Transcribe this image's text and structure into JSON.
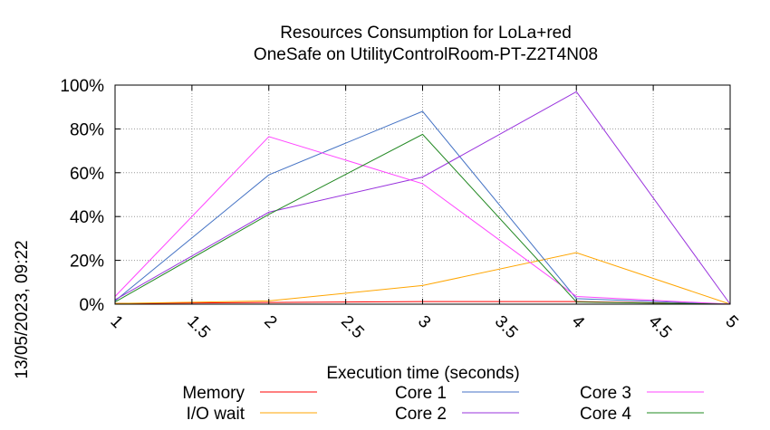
{
  "chart_data": {
    "type": "line",
    "title": "Resources Consumption for LoLa+red",
    "subtitle": "OneSafe on UtilityControlRoom-PT-Z2T4N08",
    "xlabel": "Execution time (seconds)",
    "ylabel": "",
    "side_label": "13/05/2023, 09:22",
    "xlim": [
      1,
      5
    ],
    "ylim": [
      0,
      100
    ],
    "x_ticks": [
      "1",
      "1.5",
      "2",
      "2.5",
      "3",
      "3.5",
      "4",
      "4.5",
      "5"
    ],
    "y_ticks": [
      "0%",
      "20%",
      "40%",
      "60%",
      "80%",
      "100%"
    ],
    "grid": true,
    "legend_position": "bottom",
    "series": [
      {
        "name": "Memory",
        "color": "#ff0000",
        "x": [
          1,
          2,
          3,
          4,
          5
        ],
        "y": [
          0.3,
          0.8,
          1.2,
          1.2,
          0
        ]
      },
      {
        "name": "I/O wait",
        "color": "#ffa500",
        "x": [
          1,
          2,
          3,
          4,
          5
        ],
        "y": [
          0.3,
          1.5,
          8.5,
          23.5,
          0
        ]
      },
      {
        "name": "Core 1",
        "color": "#4472c4",
        "x": [
          1,
          2,
          3,
          4,
          5
        ],
        "y": [
          1.5,
          59,
          88,
          2.5,
          0
        ]
      },
      {
        "name": "Core 2",
        "color": "#9933dd",
        "x": [
          1,
          2,
          3,
          4,
          5
        ],
        "y": [
          2,
          42,
          58,
          97,
          0
        ]
      },
      {
        "name": "Core 3",
        "color": "#ff44ff",
        "x": [
          1,
          2,
          3,
          4,
          5
        ],
        "y": [
          3.5,
          76.5,
          55,
          3.5,
          0
        ]
      },
      {
        "name": "Core 4",
        "color": "#228822",
        "x": [
          1,
          2,
          3,
          4,
          5
        ],
        "y": [
          1,
          41,
          77.5,
          1,
          0
        ]
      }
    ]
  }
}
